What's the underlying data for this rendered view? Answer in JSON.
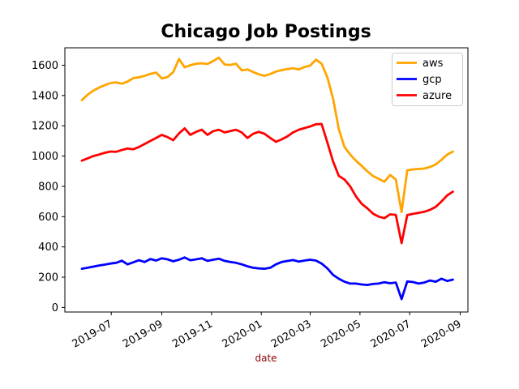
{
  "title": "Chicago Job Postings",
  "axis": {
    "xlabel": "date",
    "xlabel_color": "#8b0000",
    "ylabel": ""
  },
  "legend": {
    "position": "upper right",
    "entries": [
      {
        "label": "aws",
        "color": "#ffa500"
      },
      {
        "label": "gcp",
        "color": "#0000ff"
      },
      {
        "label": "azure",
        "color": "#ff0000"
      }
    ]
  },
  "chart_data": {
    "type": "line",
    "title": "Chicago Job Postings",
    "xlabel": "date",
    "ylabel": "",
    "grid": false,
    "legend_position": "upper right",
    "xticks": [
      "2019-07",
      "2019-09",
      "2019-11",
      "2020-01",
      "2020-03",
      "2020-05",
      "2020-07",
      "2020-09"
    ],
    "yticks": [
      0,
      200,
      400,
      600,
      800,
      1000,
      1200,
      1400,
      1600
    ],
    "ylim": [
      -30,
      1715
    ],
    "x": [
      "2019-05-26",
      "2019-06-02",
      "2019-06-09",
      "2019-06-16",
      "2019-06-23",
      "2019-06-30",
      "2019-07-07",
      "2019-07-14",
      "2019-07-21",
      "2019-07-28",
      "2019-08-04",
      "2019-08-11",
      "2019-08-18",
      "2019-08-25",
      "2019-09-01",
      "2019-09-08",
      "2019-09-15",
      "2019-09-22",
      "2019-09-29",
      "2019-10-06",
      "2019-10-13",
      "2019-10-20",
      "2019-10-27",
      "2019-11-03",
      "2019-11-10",
      "2019-11-17",
      "2019-11-24",
      "2019-12-01",
      "2019-12-08",
      "2019-12-15",
      "2019-12-22",
      "2019-12-29",
      "2020-01-05",
      "2020-01-12",
      "2020-01-19",
      "2020-01-26",
      "2020-02-02",
      "2020-02-09",
      "2020-02-16",
      "2020-02-23",
      "2020-03-01",
      "2020-03-08",
      "2020-03-15",
      "2020-03-22",
      "2020-03-29",
      "2020-04-05",
      "2020-04-12",
      "2020-04-19",
      "2020-04-26",
      "2020-05-03",
      "2020-05-10",
      "2020-05-17",
      "2020-05-24",
      "2020-05-31",
      "2020-06-07",
      "2020-06-14",
      "2020-06-21",
      "2020-06-28",
      "2020-07-05",
      "2020-07-12",
      "2020-07-19",
      "2020-07-26",
      "2020-08-02",
      "2020-08-09",
      "2020-08-16",
      "2020-08-23"
    ],
    "series": [
      {
        "name": "aws",
        "color": "#ffa500",
        "values": [
          1370,
          1405,
          1432,
          1452,
          1468,
          1482,
          1487,
          1478,
          1492,
          1515,
          1520,
          1530,
          1543,
          1552,
          1513,
          1522,
          1555,
          1641,
          1587,
          1600,
          1610,
          1613,
          1608,
          1628,
          1650,
          1605,
          1602,
          1610,
          1566,
          1572,
          1555,
          1540,
          1530,
          1542,
          1558,
          1568,
          1575,
          1580,
          1572,
          1588,
          1598,
          1637,
          1610,
          1520,
          1380,
          1180,
          1060,
          1010,
          970,
          935,
          900,
          868,
          850,
          830,
          875,
          845,
          630,
          905,
          912,
          915,
          918,
          928,
          945,
          975,
          1010,
          1030
        ]
      },
      {
        "name": "gcp",
        "color": "#0000ff",
        "values": [
          256,
          262,
          270,
          277,
          283,
          290,
          295,
          309,
          285,
          298,
          312,
          300,
          320,
          310,
          325,
          318,
          305,
          315,
          330,
          312,
          318,
          325,
          308,
          315,
          322,
          308,
          300,
          295,
          285,
          272,
          262,
          258,
          256,
          262,
          285,
          300,
          307,
          313,
          303,
          310,
          315,
          310,
          290,
          258,
          215,
          190,
          170,
          158,
          158,
          152,
          149,
          155,
          158,
          167,
          160,
          165,
          55,
          172,
          168,
          158,
          165,
          178,
          170,
          190,
          175,
          184
        ]
      },
      {
        "name": "azure",
        "color": "#ff0000",
        "values": [
          970,
          985,
          1000,
          1010,
          1022,
          1030,
          1028,
          1040,
          1050,
          1045,
          1060,
          1080,
          1100,
          1120,
          1140,
          1125,
          1105,
          1150,
          1183,
          1140,
          1160,
          1174,
          1140,
          1165,
          1174,
          1156,
          1165,
          1174,
          1156,
          1120,
          1147,
          1160,
          1147,
          1120,
          1094,
          1110,
          1130,
          1156,
          1174,
          1185,
          1195,
          1210,
          1212,
          1090,
          965,
          870,
          845,
          800,
          735,
          685,
          655,
          620,
          600,
          590,
          615,
          612,
          425,
          610,
          618,
          625,
          632,
          645,
          665,
          700,
          740,
          765
        ]
      }
    ]
  }
}
